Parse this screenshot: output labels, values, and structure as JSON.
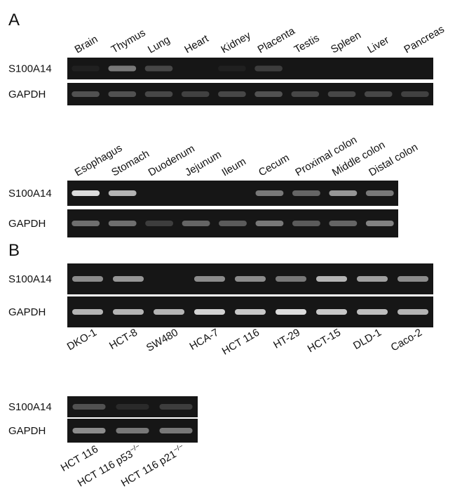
{
  "panels": [
    {
      "label": "A",
      "gels": [
        {
          "rows": [
            "S100A14",
            "GAPDH"
          ],
          "lanes": [
            "Brain",
            "Thymus",
            "Lung",
            "Heart",
            "Kidney",
            "Placenta",
            "Testis",
            "Spleen",
            "Liver",
            "Pancreas"
          ]
        },
        {
          "rows": [
            "S100A14",
            "GAPDH"
          ],
          "lanes": [
            "Esophagus",
            "Stomach",
            "Duodenum",
            "Jejunum",
            "Ileum",
            "Cecum",
            "Proximal colon",
            "Middle colon",
            "Distal colon"
          ]
        }
      ]
    },
    {
      "label": "B",
      "gels": [
        {
          "rows": [
            "S100A14",
            "GAPDH"
          ],
          "lanes": [
            "DKO-1",
            "HCT-8",
            "SW480",
            "HCA-7",
            "HCT 116",
            "HT-29",
            "HCT-15",
            "DLD-1",
            "Caco-2"
          ]
        },
        {
          "rows": [
            "S100A14",
            "GAPDH"
          ],
          "lanes": [
            {
              "text": "HCT 116"
            },
            {
              "text": "HCT 116 p53",
              "superscript": "−/−"
            },
            {
              "text": "HCT 116 p21",
              "superscript": "−/−"
            }
          ]
        }
      ]
    }
  ]
}
